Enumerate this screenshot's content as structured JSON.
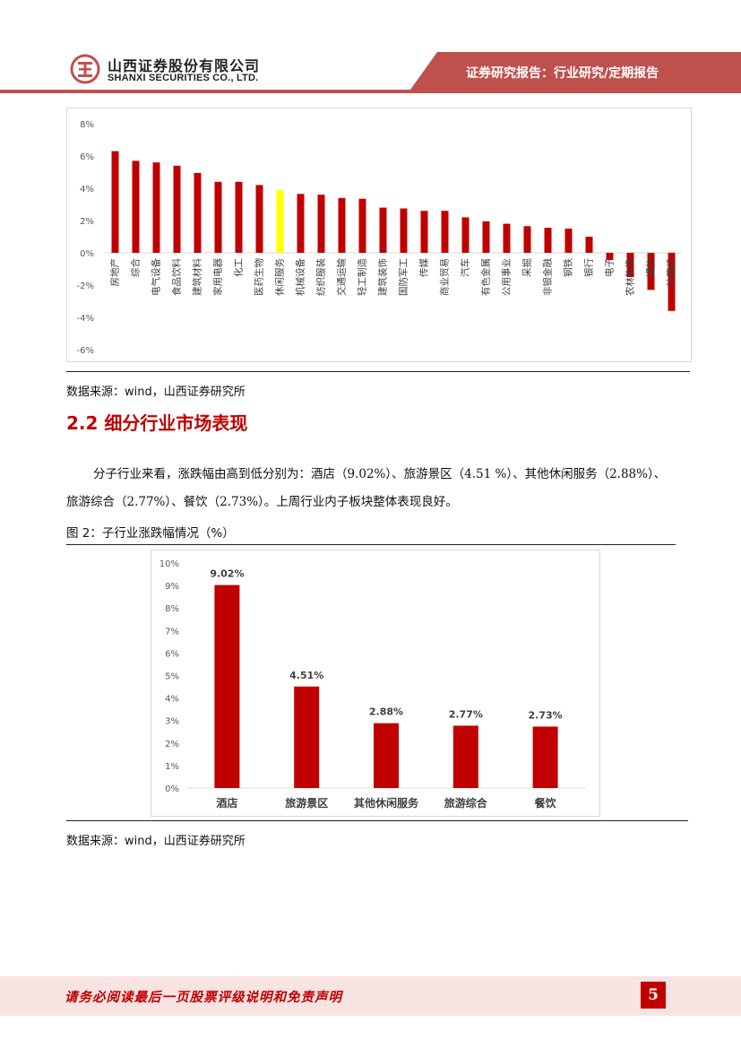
{
  "header": {
    "company_cn": "山西证券股份有限公司",
    "company_en": "SHANXI SECURITIES CO., LTD.",
    "report_title": "证券研究报告：行业研究/定期报告",
    "logo": "shanxi-securities-logo",
    "accent_color": "#c0504d"
  },
  "chart1_source": "数据来源：wind，山西证券研究所",
  "section": {
    "title": "2.2 细分行业市场表现",
    "paragraph": "分子行业来看，涨跌幅由高到低分别为：酒店（9.02%）、旅游景区（4.51 %）、其他休闲服务（2.88%）、旅游综合（2.77%）、餐饮（2.73%）。上周行业内子板块整体表现良好。"
  },
  "figure2": {
    "caption": "图 2：子行业涨跌幅情况（%）",
    "source": "数据来源：wind，山西证券研究所"
  },
  "footer": {
    "disclaimer": "请务必阅读最后一页股票评级说明和免责声明",
    "page_number": "5"
  },
  "chart_data": [
    {
      "type": "bar",
      "categories": [
        "房地产",
        "综合",
        "电气设备",
        "食品饮料",
        "建筑材料",
        "家用电器",
        "化工",
        "医药生物",
        "休闲服务",
        "机械设备",
        "纺织服装",
        "交通运输",
        "轻工制造",
        "建筑装饰",
        "国防军工",
        "传媒",
        "商业贸易",
        "汽车",
        "有色金属",
        "公用事业",
        "采掘",
        "非银金融",
        "钢铁",
        "银行",
        "电子",
        "农林牧渔",
        "通信",
        "计算机"
      ],
      "values": [
        6.3,
        5.7,
        5.6,
        5.4,
        4.95,
        4.4,
        4.4,
        4.2,
        3.9,
        3.65,
        3.6,
        3.4,
        3.35,
        2.8,
        2.75,
        2.6,
        2.6,
        2.2,
        1.95,
        1.8,
        1.65,
        1.55,
        1.5,
        1.0,
        -0.45,
        -1.5,
        -2.3,
        -3.6
      ],
      "highlight_category": "休闲服务",
      "ylim": [
        -6,
        8
      ],
      "yticks": [
        "8%",
        "6%",
        "4%",
        "2%",
        "0%",
        "-2%",
        "-4%",
        "-6%"
      ],
      "colors": {
        "bar": "#c00000",
        "highlight": "#ffff00"
      },
      "grid": false
    },
    {
      "type": "bar",
      "categories": [
        "酒店",
        "旅游景区",
        "其他休闲服务",
        "旅游综合",
        "餐饮"
      ],
      "values": [
        9.02,
        4.51,
        2.88,
        2.77,
        2.73
      ],
      "data_labels": [
        "9.02%",
        "4.51%",
        "2.88%",
        "2.77%",
        "2.73%"
      ],
      "ylim": [
        0,
        10
      ],
      "yticks": [
        "10%",
        "9%",
        "8%",
        "7%",
        "6%",
        "5%",
        "4%",
        "3%",
        "2%",
        "1%",
        "0%"
      ],
      "colors": {
        "bar": "#c00000"
      },
      "grid": false
    }
  ]
}
